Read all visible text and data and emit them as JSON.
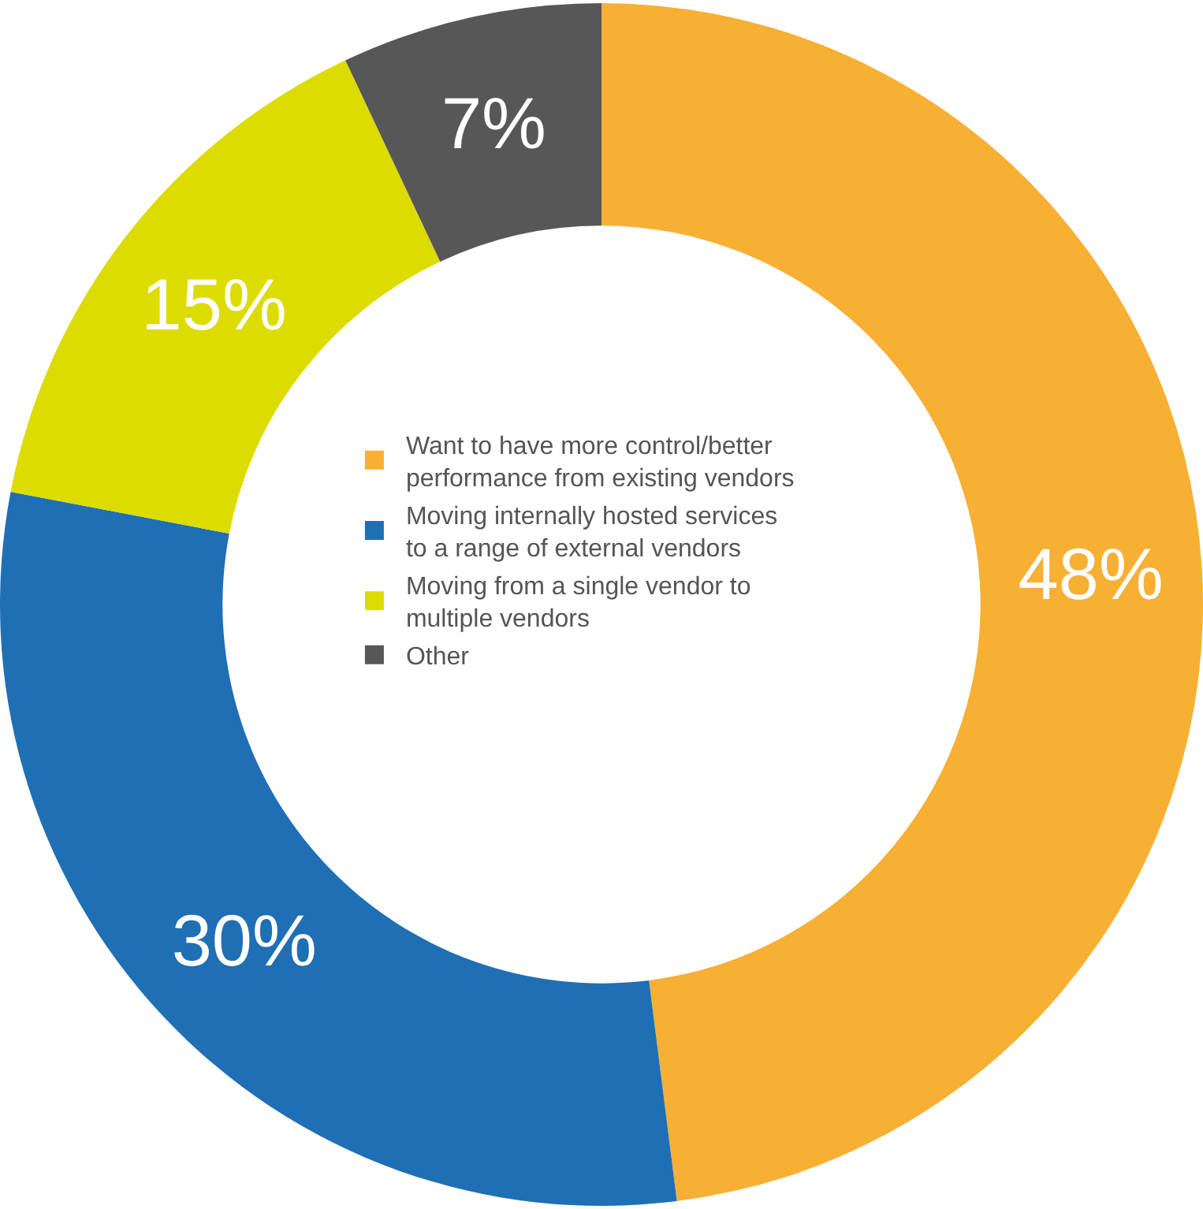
{
  "chart_data": {
    "type": "donut",
    "categories": [
      "Want to have more control/better performance from existing vendors",
      "Moving internally hosted services to a range of external vendors",
      "Moving from a single vendor to multiple vendors",
      "Other"
    ],
    "values": [
      48,
      30,
      15,
      7
    ],
    "value_labels": [
      "48%",
      "30%",
      "15%",
      "7%"
    ],
    "colors": [
      "#f7b033",
      "#1f6fb5",
      "#dcdc00",
      "#575757"
    ],
    "legend": "center"
  }
}
